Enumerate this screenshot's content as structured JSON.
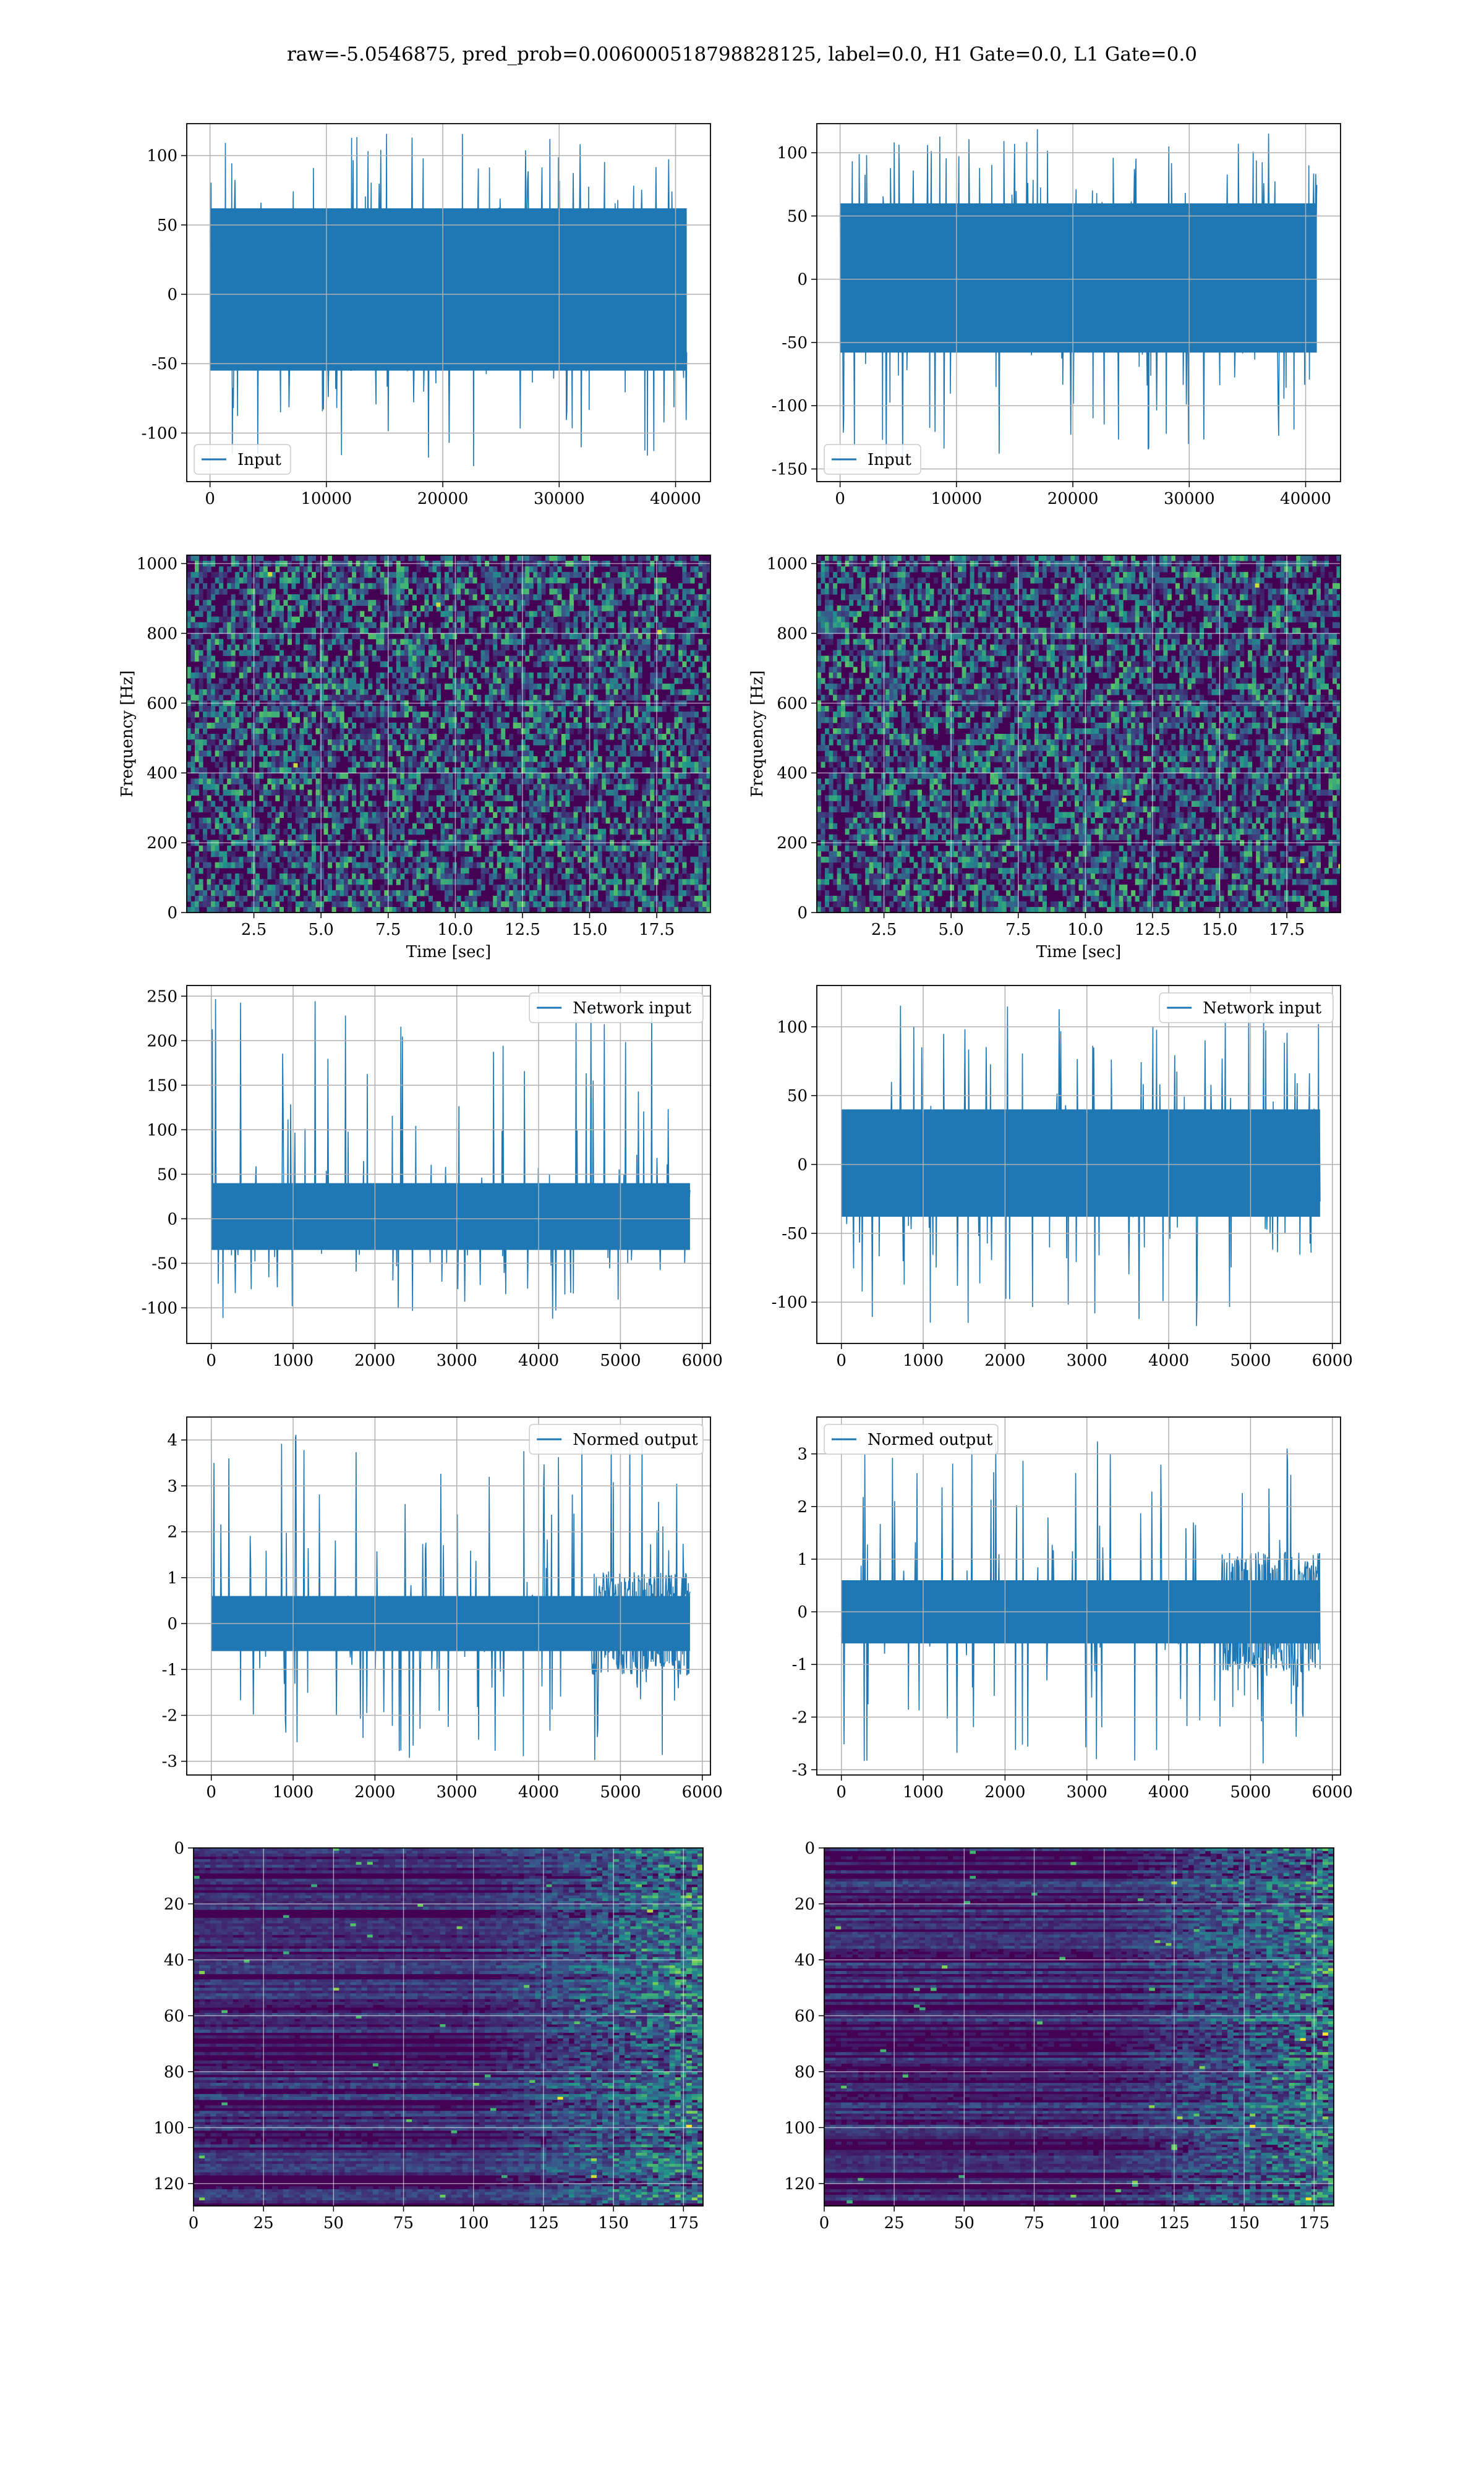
{
  "figure": {
    "title": "raw=-5.0546875, pred_prob=0.006000518798828125, label=0.0, H1 Gate=0.0, L1 Gate=0.0"
  },
  "colors": {
    "series": "#1f77b4",
    "grid": "#b0b0b0",
    "viridis_low": "#440154",
    "viridis_mid": "#21918c",
    "viridis_high": "#fde725"
  },
  "chart_data": [
    {
      "id": "h1-input",
      "type": "line",
      "title": "",
      "xlabel": "",
      "ylabel": "",
      "xlim": [
        -2000,
        43000
      ],
      "ylim": [
        -135,
        123
      ],
      "xticks": [
        0,
        10000,
        20000,
        30000,
        40000
      ],
      "yticks": [
        -100,
        -50,
        0,
        50,
        100
      ],
      "legend": {
        "location": "lower left",
        "entries": [
          "Input"
        ]
      },
      "grid": true,
      "series": [
        {
          "name": "Input",
          "x_range": [
            0,
            40960
          ],
          "band": [
            -55,
            62
          ],
          "extremes": [
            -125,
            116
          ]
        }
      ]
    },
    {
      "id": "l1-input",
      "type": "line",
      "title": "",
      "xlabel": "",
      "ylabel": "",
      "xlim": [
        -2000,
        43000
      ],
      "ylim": [
        -160,
        123
      ],
      "xticks": [
        0,
        10000,
        20000,
        30000,
        40000
      ],
      "yticks": [
        -150,
        -100,
        -50,
        0,
        50,
        100
      ],
      "legend": {
        "location": "lower left",
        "entries": [
          "Input"
        ]
      },
      "grid": true,
      "series": [
        {
          "name": "Input",
          "x_range": [
            0,
            40960
          ],
          "band": [
            -58,
            60
          ],
          "extremes": [
            -148,
            120
          ]
        }
      ]
    },
    {
      "id": "h1-spectrogram",
      "type": "heatmap",
      "title": "",
      "xlabel": "Time [sec]",
      "ylabel": "Frequency [Hz]",
      "xlim": [
        0,
        19.5
      ],
      "ylim": [
        0,
        1024
      ],
      "xticks": [
        2.5,
        5.0,
        7.5,
        10.0,
        12.5,
        15.0,
        17.5
      ],
      "yticks": [
        0,
        200,
        400,
        600,
        800,
        1000
      ],
      "grid": true,
      "colormap": "viridis"
    },
    {
      "id": "l1-spectrogram",
      "type": "heatmap",
      "title": "",
      "xlabel": "Time [sec]",
      "ylabel": "Frequency [Hz]",
      "xlim": [
        0,
        19.5
      ],
      "ylim": [
        0,
        1024
      ],
      "xticks": [
        2.5,
        5.0,
        7.5,
        10.0,
        12.5,
        15.0,
        17.5
      ],
      "yticks": [
        0,
        200,
        400,
        600,
        800,
        1000
      ],
      "grid": true,
      "colormap": "viridis"
    },
    {
      "id": "h1-network-input",
      "type": "line",
      "title": "",
      "xlabel": "",
      "ylabel": "",
      "xlim": [
        -300,
        6100
      ],
      "ylim": [
        -140,
        262
      ],
      "xticks": [
        0,
        1000,
        2000,
        3000,
        4000,
        5000,
        6000
      ],
      "yticks": [
        -100,
        -50,
        0,
        50,
        100,
        150,
        200,
        250
      ],
      "legend": {
        "location": "upper right",
        "entries": [
          "Network input"
        ]
      },
      "grid": true,
      "series": [
        {
          "name": "Network input",
          "x_range": [
            0,
            5850
          ],
          "band": [
            -35,
            40
          ],
          "extremes": [
            -118,
            248
          ]
        }
      ]
    },
    {
      "id": "l1-network-input",
      "type": "line",
      "title": "",
      "xlabel": "",
      "ylabel": "",
      "xlim": [
        -300,
        6100
      ],
      "ylim": [
        -130,
        130
      ],
      "xticks": [
        0,
        1000,
        2000,
        3000,
        4000,
        5000,
        6000
      ],
      "yticks": [
        -100,
        -50,
        0,
        50,
        100
      ],
      "legend": {
        "location": "upper right",
        "entries": [
          "Network input"
        ]
      },
      "grid": true,
      "series": [
        {
          "name": "Network input",
          "x_range": [
            0,
            5850
          ],
          "band": [
            -38,
            40
          ],
          "extremes": [
            -118,
            118
          ]
        }
      ]
    },
    {
      "id": "h1-normed-output",
      "type": "line",
      "title": "",
      "xlabel": "",
      "ylabel": "",
      "xlim": [
        -300,
        6100
      ],
      "ylim": [
        -3.3,
        4.5
      ],
      "xticks": [
        0,
        1000,
        2000,
        3000,
        4000,
        5000,
        6000
      ],
      "yticks": [
        -3,
        -2,
        -1,
        0,
        1,
        2,
        3,
        4
      ],
      "legend": {
        "location": "upper right",
        "entries": [
          "Normed output"
        ]
      },
      "grid": true,
      "series": [
        {
          "name": "Normed output",
          "x_range": [
            0,
            5850
          ],
          "band": [
            -0.6,
            0.6
          ],
          "extremes": [
            -3.0,
            4.2
          ]
        }
      ]
    },
    {
      "id": "l1-normed-output",
      "type": "line",
      "title": "",
      "xlabel": "",
      "ylabel": "",
      "xlim": [
        -300,
        6100
      ],
      "ylim": [
        -3.1,
        3.7
      ],
      "xticks": [
        0,
        1000,
        2000,
        3000,
        4000,
        5000,
        6000
      ],
      "yticks": [
        -3,
        -2,
        -1,
        0,
        1,
        2,
        3
      ],
      "legend": {
        "location": "upper left",
        "entries": [
          "Normed output"
        ]
      },
      "grid": true,
      "series": [
        {
          "name": "Normed output",
          "x_range": [
            0,
            5850
          ],
          "band": [
            -0.6,
            0.6
          ],
          "extremes": [
            -2.9,
            3.4
          ]
        }
      ]
    },
    {
      "id": "h1-feature-map",
      "type": "heatmap",
      "title": "",
      "xlabel": "",
      "ylabel": "",
      "xlim": [
        0,
        182
      ],
      "ylim": [
        128,
        0
      ],
      "xticks": [
        0,
        25,
        50,
        75,
        100,
        125,
        150,
        175
      ],
      "yticks": [
        0,
        20,
        40,
        60,
        80,
        100,
        120
      ],
      "grid": true,
      "colormap": "viridis"
    },
    {
      "id": "l1-feature-map",
      "type": "heatmap",
      "title": "",
      "xlabel": "",
      "ylabel": "",
      "xlim": [
        0,
        182
      ],
      "ylim": [
        128,
        0
      ],
      "xticks": [
        0,
        25,
        50,
        75,
        100,
        125,
        150,
        175
      ],
      "yticks": [
        0,
        20,
        40,
        60,
        80,
        100,
        120
      ],
      "grid": true,
      "colormap": "viridis"
    }
  ]
}
